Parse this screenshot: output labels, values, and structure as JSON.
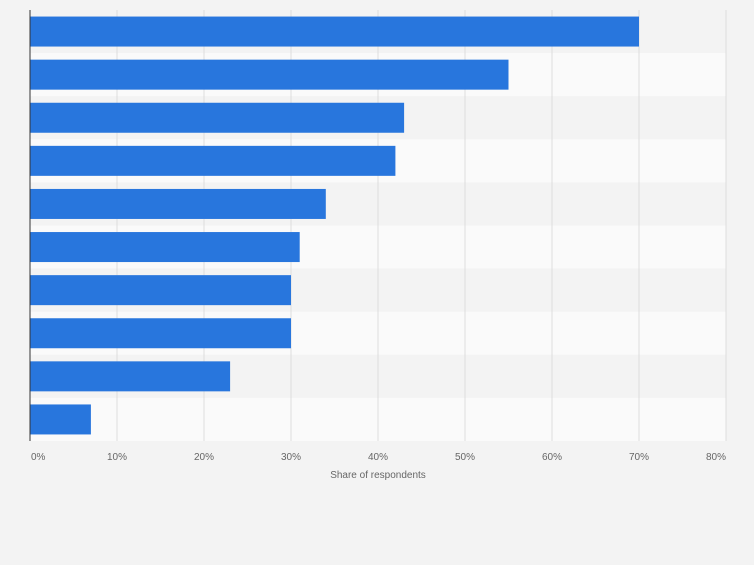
{
  "chart_data": {
    "type": "bar",
    "orientation": "horizontal",
    "title": "",
    "categories": [
      "",
      "",
      "",
      "",
      "",
      "",
      "",
      "",
      "",
      ""
    ],
    "values": [
      70,
      55,
      43,
      42,
      34,
      31,
      30,
      30,
      23,
      7
    ],
    "xlabel": "Share of respondents",
    "ylabel": "",
    "xlim": [
      0,
      80
    ],
    "x_ticks": [
      0,
      10,
      20,
      30,
      40,
      50,
      60,
      70,
      80
    ],
    "x_tick_labels": [
      "0%",
      "10%",
      "20%",
      "30%",
      "40%",
      "50%",
      "60%",
      "70%",
      "80%"
    ],
    "grid": true,
    "legend": "none",
    "bar_color": "#2876dd",
    "band_colors": [
      "#f3f3f3",
      "#fafafa"
    ],
    "gridline_color": "#dddddd",
    "axis_color": "#333333",
    "text_color": "#666666"
  }
}
